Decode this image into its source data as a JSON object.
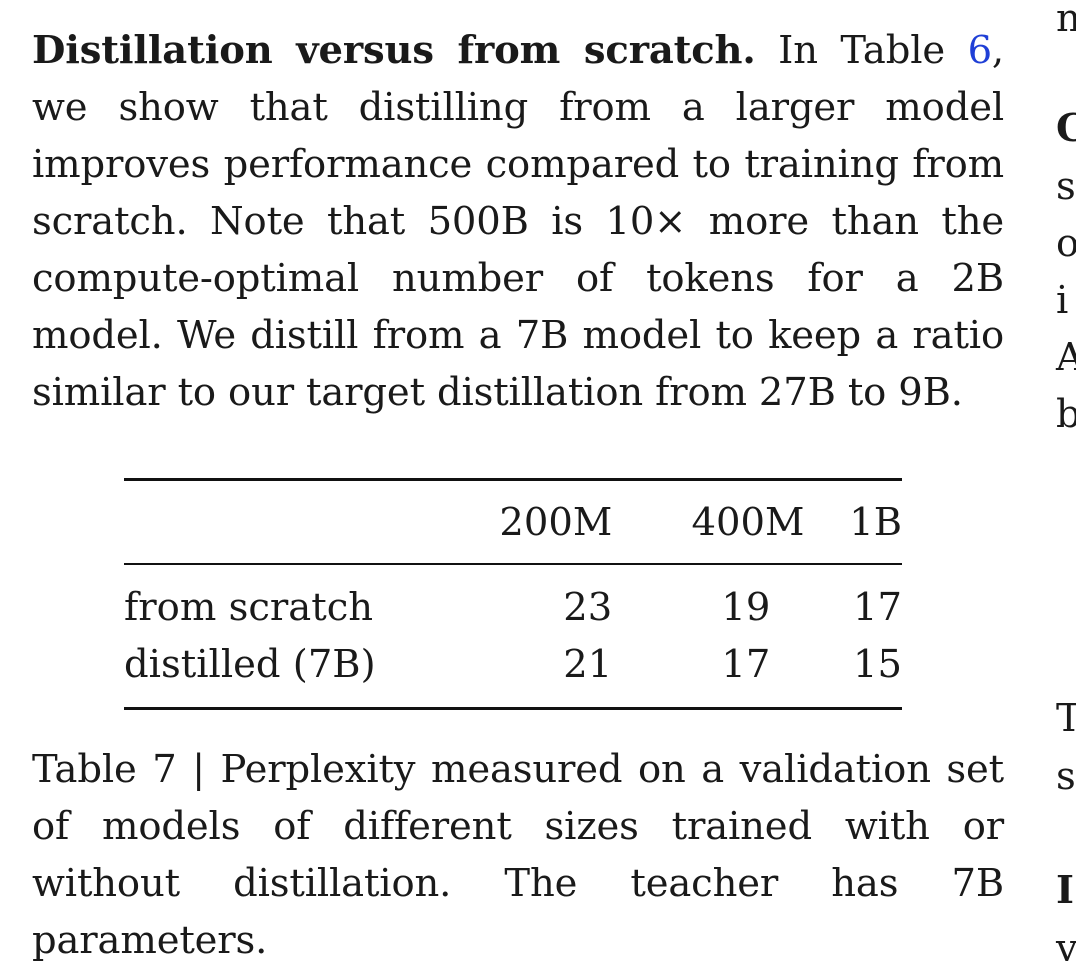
{
  "paragraph": {
    "lead": "Distillation versus from scratch.",
    "text_before_ref": " In Table ",
    "ref": "6",
    "text_after_ref": ", we show that distilling from a larger model improves performance compared to training from scratch. Note that 500B is 10× more than the compute-optimal number of tokens for a 2B model. We distill from a 7B model to keep a ratio similar to our target distillation from 27B to 9B."
  },
  "table": {
    "columns": [
      "",
      "200M",
      "400M",
      "1B"
    ],
    "rows": [
      {
        "label": "from scratch",
        "values": [
          "23",
          "19",
          "17"
        ]
      },
      {
        "label": "distilled (7B)",
        "values": [
          "21",
          "17",
          "15"
        ]
      }
    ]
  },
  "caption": "Table 7 | Perplexity measured on a validation set of models of different sizes trained with or without distillation. The teacher has 7B parameters.",
  "right_column_fragments": [
    "n",
    "C",
    "s",
    "o",
    "i",
    "A",
    "b",
    "T",
    "s",
    "I",
    "v"
  ]
}
